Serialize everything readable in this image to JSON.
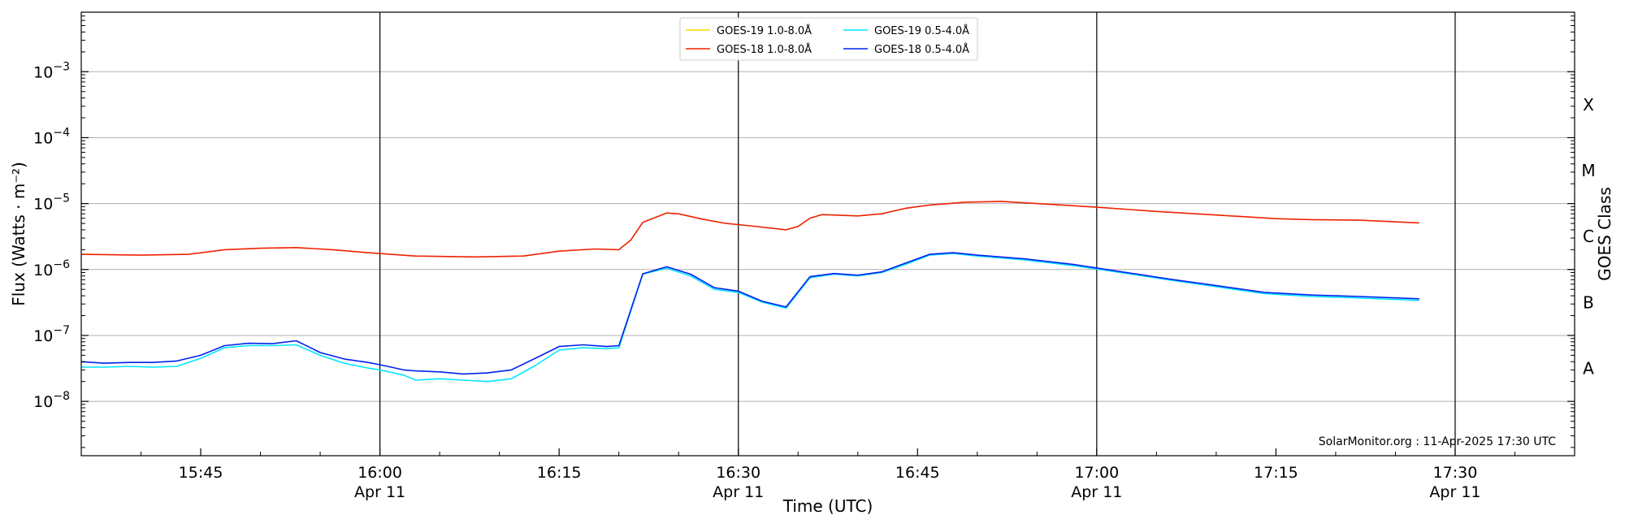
{
  "chart_data": {
    "type": "line",
    "xlabel": "Time (UTC)",
    "ylabel": "Flux (Watts · m⁻²)",
    "ylabel2": "GOES Class",
    "yscale": "log",
    "ylim": [
      1.5e-09,
      0.008
    ],
    "xlim": [
      "15:35",
      "17:40"
    ],
    "grid": "horizontal",
    "legend_position": "top-center",
    "watermark": "SolarMonitor.org : 11-Apr-2025 17:30 UTC",
    "x_ticks": [
      {
        "time": "15:45",
        "label": "15:45",
        "date": ""
      },
      {
        "time": "16:00",
        "label": "16:00",
        "date": "Apr 11"
      },
      {
        "time": "16:15",
        "label": "16:15",
        "date": ""
      },
      {
        "time": "16:30",
        "label": "16:30",
        "date": "Apr 11"
      },
      {
        "time": "16:45",
        "label": "16:45",
        "date": ""
      },
      {
        "time": "17:00",
        "label": "17:00",
        "date": "Apr 11"
      },
      {
        "time": "17:15",
        "label": "17:15",
        "date": ""
      },
      {
        "time": "17:30",
        "label": "17:30",
        "date": "Apr 11"
      }
    ],
    "y_ticks": [
      {
        "value": 1e-08,
        "base": "10",
        "exp": "−8"
      },
      {
        "value": 1e-07,
        "base": "10",
        "exp": "−7"
      },
      {
        "value": 1e-06,
        "base": "10",
        "exp": "−6"
      },
      {
        "value": 1e-05,
        "base": "10",
        "exp": "−5"
      },
      {
        "value": 0.0001,
        "base": "10",
        "exp": "−4"
      },
      {
        "value": 0.001,
        "base": "10",
        "exp": "−3"
      }
    ],
    "day_lines": [
      "16:00",
      "16:30",
      "17:00",
      "17:30"
    ],
    "goes_classes": [
      {
        "label": "A",
        "value": 3.16e-08
      },
      {
        "label": "B",
        "value": 3.16e-07
      },
      {
        "label": "C",
        "value": 3.16e-06
      },
      {
        "label": "M",
        "value": 3.16e-05
      },
      {
        "label": "X",
        "value": 0.000316
      }
    ],
    "series": [
      {
        "name": "GOES-19 1.0-8.0Å",
        "color": "#ffd700",
        "x": [],
        "y": []
      },
      {
        "name": "GOES-19 0.5-4.0Å",
        "color": "#00e5ff",
        "x": [
          "15:35",
          "15:37",
          "15:39",
          "15:41",
          "15:43",
          "15:45",
          "15:47",
          "15:49",
          "15:51",
          "15:53",
          "15:55",
          "15:57",
          "15:59",
          "16:00",
          "16:02",
          "16:03",
          "16:05",
          "16:07",
          "16:09",
          "16:11",
          "16:13",
          "16:15",
          "16:17",
          "16:19",
          "16:20",
          "16:22",
          "16:24",
          "16:26",
          "16:28",
          "16:30",
          "16:32",
          "16:34",
          "16:36",
          "16:38",
          "16:40",
          "16:42",
          "16:44",
          "16:46",
          "16:48",
          "16:50",
          "16:54",
          "16:58",
          "17:02",
          "17:06",
          "17:10",
          "17:14",
          "17:18",
          "17:22",
          "17:27"
        ],
        "y": [
          3.3e-08,
          3.3e-08,
          3.4e-08,
          3.3e-08,
          3.4e-08,
          4.5e-08,
          6.5e-08,
          7e-08,
          7e-08,
          7.2e-08,
          5e-08,
          3.8e-08,
          3.2e-08,
          3e-08,
          2.5e-08,
          2.1e-08,
          2.2e-08,
          2.1e-08,
          2e-08,
          2.2e-08,
          3.5e-08,
          6e-08,
          6.5e-08,
          6.3e-08,
          6.5e-08,
          8.5e-07,
          1.05e-06,
          8e-07,
          5e-07,
          4.5e-07,
          3.2e-07,
          2.6e-07,
          7.5e-07,
          8.5e-07,
          8e-07,
          9e-07,
          1.2e-06,
          1.65e-06,
          1.75e-06,
          1.6e-06,
          1.4e-06,
          1.15e-06,
          9e-07,
          7e-07,
          5.5e-07,
          4.3e-07,
          3.9e-07,
          3.7e-07,
          3.4e-07
        ]
      },
      {
        "name": "GOES-18 1.0-8.0Å",
        "color": "#ee2200",
        "x": [
          "15:35",
          "15:40",
          "15:44",
          "15:47",
          "15:50",
          "15:53",
          "15:56",
          "15:59",
          "16:03",
          "16:08",
          "16:12",
          "16:15",
          "16:18",
          "16:20",
          "16:21",
          "16:22",
          "16:24",
          "16:25",
          "16:27",
          "16:29",
          "16:31",
          "16:34",
          "16:35",
          "16:36",
          "16:37",
          "16:40",
          "16:42",
          "16:44",
          "16:46",
          "16:49",
          "16:52",
          "16:55",
          "17:00",
          "17:05",
          "17:10",
          "17:15",
          "17:18",
          "17:22",
          "17:27"
        ],
        "y": [
          1.7e-06,
          1.65e-06,
          1.7e-06,
          2e-06,
          2.1e-06,
          2.15e-06,
          2e-06,
          1.8e-06,
          1.6e-06,
          1.55e-06,
          1.6e-06,
          1.9e-06,
          2.05e-06,
          2e-06,
          2.8e-06,
          5.2e-06,
          7.2e-06,
          7e-06,
          5.8e-06,
          5e-06,
          4.6e-06,
          4e-06,
          4.5e-06,
          6e-06,
          6.8e-06,
          6.5e-06,
          7e-06,
          8.5e-06,
          9.5e-06,
          1.05e-05,
          1.08e-05,
          1e-05,
          8.8e-06,
          7.6e-06,
          6.7e-06,
          5.9e-06,
          5.7e-06,
          5.6e-06,
          5.1e-06
        ]
      },
      {
        "name": "GOES-18 0.5-4.0Å",
        "color": "#0022ee",
        "x": [
          "15:35",
          "15:37",
          "15:39",
          "15:41",
          "15:43",
          "15:45",
          "15:47",
          "15:49",
          "15:51",
          "15:53",
          "15:55",
          "15:57",
          "15:59",
          "16:00",
          "16:02",
          "16:03",
          "16:05",
          "16:07",
          "16:09",
          "16:11",
          "16:13",
          "16:15",
          "16:17",
          "16:19",
          "16:20",
          "16:22",
          "16:24",
          "16:26",
          "16:28",
          "16:30",
          "16:32",
          "16:34",
          "16:36",
          "16:38",
          "16:40",
          "16:42",
          "16:44",
          "16:46",
          "16:48",
          "16:50",
          "16:54",
          "16:58",
          "17:02",
          "17:06",
          "17:10",
          "17:14",
          "17:18",
          "17:22",
          "17:27"
        ],
        "y": [
          4e-08,
          3.8e-08,
          3.9e-08,
          3.9e-08,
          4.1e-08,
          5e-08,
          7e-08,
          7.6e-08,
          7.5e-08,
          8.3e-08,
          5.5e-08,
          4.4e-08,
          3.9e-08,
          3.6e-08,
          3e-08,
          2.9e-08,
          2.8e-08,
          2.6e-08,
          2.7e-08,
          3e-08,
          4.5e-08,
          6.8e-08,
          7.2e-08,
          6.8e-08,
          7e-08,
          8.6e-07,
          1.1e-06,
          8.5e-07,
          5.3e-07,
          4.7e-07,
          3.3e-07,
          2.7e-07,
          7.8e-07,
          8.7e-07,
          8.2e-07,
          9.2e-07,
          1.25e-06,
          1.7e-06,
          1.8e-06,
          1.65e-06,
          1.45e-06,
          1.2e-06,
          9.3e-07,
          7.2e-07,
          5.7e-07,
          4.5e-07,
          4.1e-07,
          3.9e-07,
          3.6e-07
        ]
      }
    ]
  }
}
